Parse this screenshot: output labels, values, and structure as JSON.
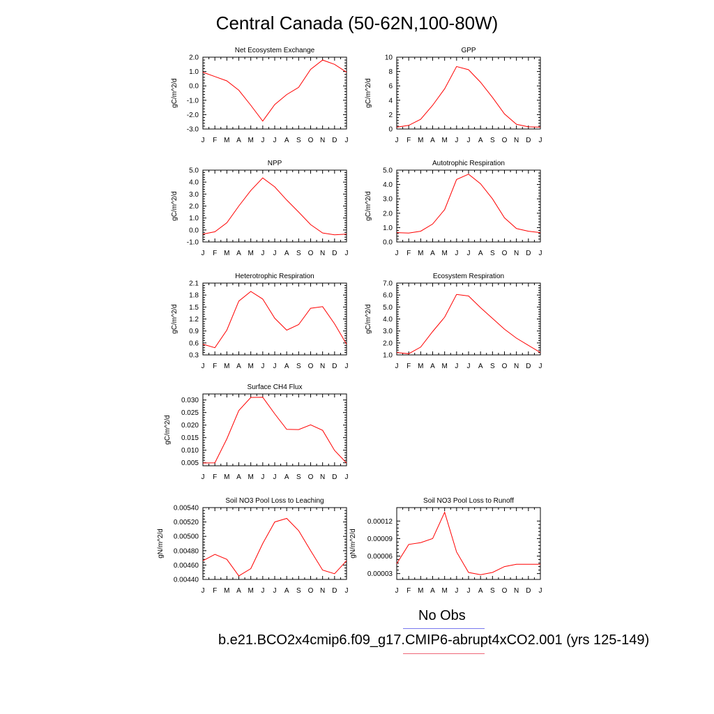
{
  "title": "Central Canada (50-62N,100-80W)",
  "legend": {
    "obs_label": "No Obs",
    "case_label": "b.e21.BCO2x4cmip6.f09_g17.CMIP6-abrupt4xCO2.001 (yrs 125-149)",
    "obs_color": "#7777ee",
    "case_color": "#ee6677"
  },
  "series_color": "#ff0000",
  "chart_data": [
    {
      "type": "line",
      "title": "Net Ecosystem Exchange",
      "ylabel": "gC/m^2/d",
      "categories": [
        "J",
        "F",
        "M",
        "A",
        "M",
        "J",
        "J",
        "A",
        "S",
        "O",
        "N",
        "D",
        "J"
      ],
      "values": [
        0.95,
        0.65,
        0.35,
        -0.3,
        -1.35,
        -2.45,
        -1.3,
        -0.6,
        -0.1,
        1.15,
        1.8,
        1.5,
        0.95
      ],
      "ylim": [
        -3,
        2
      ],
      "yticks": [
        -3,
        -2,
        -1,
        0,
        1,
        2
      ],
      "ytick_labels": [
        "-3.0",
        "-2.0",
        "-1.0",
        "0.0",
        "1.0",
        "2.0"
      ]
    },
    {
      "type": "line",
      "title": "GPP",
      "ylabel": "gC/m^2/d",
      "categories": [
        "J",
        "F",
        "M",
        "A",
        "M",
        "J",
        "J",
        "A",
        "S",
        "O",
        "N",
        "D",
        "J"
      ],
      "values": [
        0.25,
        0.5,
        1.35,
        3.3,
        5.6,
        8.7,
        8.25,
        6.5,
        4.4,
        2.1,
        0.65,
        0.3,
        0.25
      ],
      "ylim": [
        0,
        10
      ],
      "yticks": [
        0,
        2,
        4,
        6,
        8,
        10
      ],
      "ytick_labels": [
        "0",
        "2",
        "4",
        "6",
        "8",
        "10"
      ]
    },
    {
      "type": "line",
      "title": "NPP",
      "ylabel": "gC/m^2/d",
      "categories": [
        "J",
        "F",
        "M",
        "A",
        "M",
        "J",
        "J",
        "A",
        "S",
        "O",
        "N",
        "D",
        "J"
      ],
      "values": [
        -0.35,
        -0.15,
        0.6,
        2.0,
        3.3,
        4.35,
        3.6,
        2.5,
        1.5,
        0.45,
        -0.25,
        -0.4,
        -0.35
      ],
      "ylim": [
        -1,
        5
      ],
      "yticks": [
        -1,
        0,
        1,
        2,
        3,
        4,
        5
      ],
      "ytick_labels": [
        "-1.0",
        "0.0",
        "1.0",
        "2.0",
        "3.0",
        "4.0",
        "5.0"
      ]
    },
    {
      "type": "line",
      "title": "Autotrophic Respiration",
      "ylabel": "gC/m^2/d",
      "categories": [
        "J",
        "F",
        "M",
        "A",
        "M",
        "J",
        "J",
        "A",
        "S",
        "O",
        "N",
        "D",
        "J"
      ],
      "values": [
        0.65,
        0.62,
        0.75,
        1.25,
        2.25,
        4.35,
        4.72,
        4.05,
        3.0,
        1.68,
        0.93,
        0.75,
        0.65
      ],
      "ylim": [
        0,
        5
      ],
      "yticks": [
        0,
        1,
        2,
        3,
        4,
        5
      ],
      "ytick_labels": [
        "0.0",
        "1.0",
        "2.0",
        "3.0",
        "4.0",
        "5.0"
      ]
    },
    {
      "type": "line",
      "title": "Heterotrophic Respiration",
      "ylabel": "gC/m^2/d",
      "categories": [
        "J",
        "F",
        "M",
        "A",
        "M",
        "J",
        "J",
        "A",
        "S",
        "O",
        "N",
        "D",
        "J"
      ],
      "values": [
        0.57,
        0.48,
        0.92,
        1.65,
        1.89,
        1.7,
        1.22,
        0.92,
        1.06,
        1.47,
        1.51,
        1.08,
        0.57
      ],
      "ylim": [
        0.3,
        2.1
      ],
      "yticks": [
        0.3,
        0.6,
        0.9,
        1.2,
        1.5,
        1.8,
        2.1
      ],
      "ytick_labels": [
        "0.3",
        "0.6",
        "0.9",
        "1.2",
        "1.5",
        "1.8",
        "2.1"
      ]
    },
    {
      "type": "line",
      "title": "Ecosystem Respiration",
      "ylabel": "gC/m^2/d",
      "categories": [
        "J",
        "F",
        "M",
        "A",
        "M",
        "J",
        "J",
        "A",
        "S",
        "O",
        "N",
        "D",
        "J"
      ],
      "values": [
        1.2,
        1.1,
        1.65,
        2.95,
        4.15,
        6.05,
        5.92,
        4.95,
        4.05,
        3.15,
        2.4,
        1.8,
        1.2
      ],
      "ylim": [
        1,
        7
      ],
      "yticks": [
        1,
        2,
        3,
        4,
        5,
        6,
        7
      ],
      "ytick_labels": [
        "1.0",
        "2.0",
        "3.0",
        "4.0",
        "5.0",
        "6.0",
        "7.0"
      ]
    },
    {
      "type": "line",
      "title": "Surface CH4 Flux",
      "ylabel": "gC/m^2/d",
      "categories": [
        "J",
        "F",
        "M",
        "A",
        "M",
        "J",
        "J",
        "A",
        "S",
        "O",
        "N",
        "D",
        "J"
      ],
      "values": [
        0.0049,
        0.005,
        0.0145,
        0.0258,
        0.031,
        0.0311,
        0.0245,
        0.0183,
        0.0182,
        0.0201,
        0.0179,
        0.0099,
        0.0049
      ],
      "ylim": [
        0.0038,
        0.0324
      ],
      "yticks": [
        0.005,
        0.01,
        0.015,
        0.02,
        0.025,
        0.03
      ],
      "ytick_labels": [
        "0.005",
        "0.010",
        "0.015",
        "0.020",
        "0.025",
        "0.030"
      ]
    },
    {
      "type": "line",
      "title": "Soil NO3 Pool Loss to Leaching",
      "ylabel": "gN/m^2/d",
      "categories": [
        "J",
        "F",
        "M",
        "A",
        "M",
        "J",
        "J",
        "A",
        "S",
        "O",
        "N",
        "D",
        "J"
      ],
      "values": [
        0.00466,
        0.00475,
        0.00468,
        0.00445,
        0.00455,
        0.0049,
        0.0052,
        0.00525,
        0.00508,
        0.0048,
        0.00453,
        0.00448,
        0.00466
      ],
      "ylim": [
        0.0044,
        0.0054
      ],
      "yticks": [
        0.0044,
        0.0046,
        0.0048,
        0.005,
        0.0052,
        0.0054
      ],
      "ytick_labels": [
        "0.00440",
        "0.00460",
        "0.00480",
        "0.00500",
        "0.00520",
        "0.00540"
      ]
    },
    {
      "type": "line",
      "title": "Soil NO3 Pool Loss to Runoff",
      "ylabel": "gN/m^2/d",
      "categories": [
        "J",
        "F",
        "M",
        "A",
        "M",
        "J",
        "J",
        "A",
        "S",
        "O",
        "N",
        "D",
        "J"
      ],
      "values": [
        4.7e-05,
        8e-05,
        8.3e-05,
        9e-05,
        0.000135,
        6.7e-05,
        3.2e-05,
        2.8e-05,
        3.2e-05,
        4.2e-05,
        4.6e-05,
        4.6e-05,
        4.6e-05
      ],
      "ylim": [
        2e-05,
        0.000143
      ],
      "yticks": [
        3e-05,
        6e-05,
        9e-05,
        0.00012
      ],
      "ytick_labels": [
        "0.00003",
        "0.00006",
        "0.00009",
        "0.00012"
      ]
    }
  ]
}
